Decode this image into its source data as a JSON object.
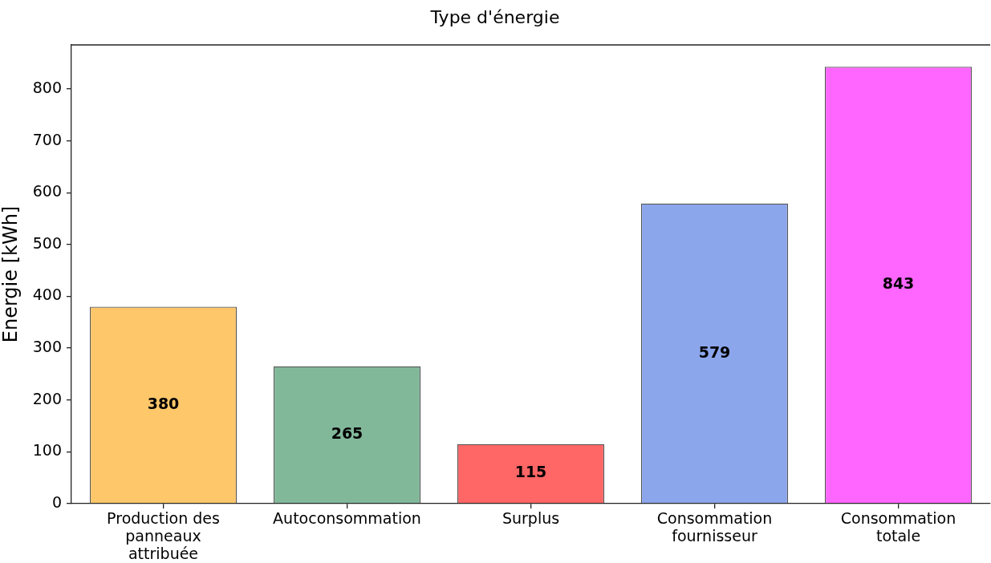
{
  "chart_data": {
    "type": "bar",
    "title": "Type d'énergie",
    "ylabel": "Energie [kWh]",
    "categories": [
      "Production des panneaux attribuée",
      "Autoconsommation",
      "Surplus",
      "Consommation fournisseur",
      "Consommation totale"
    ],
    "values": [
      380,
      265,
      115,
      579,
      843
    ],
    "colors": [
      "#fdc76a",
      "#82b89a",
      "#ff6666",
      "#8ca6ec",
      "#ff66ff"
    ],
    "ylim": [
      0,
      885
    ],
    "yticks": [
      0,
      100,
      200,
      300,
      400,
      500,
      600,
      700,
      800
    ],
    "data_labels": true
  }
}
